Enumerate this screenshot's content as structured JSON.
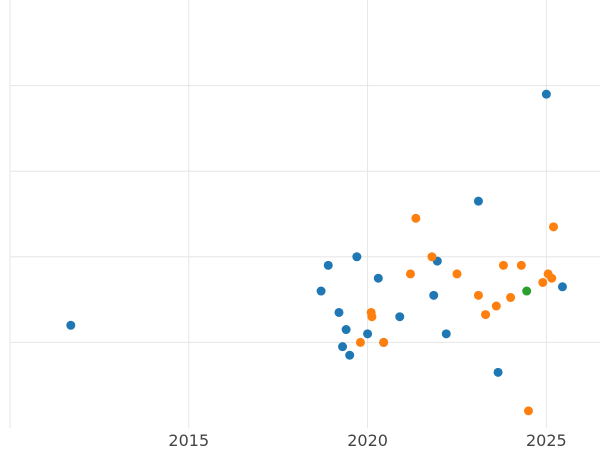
{
  "chart_data": {
    "type": "scatter",
    "title": "",
    "xlabel": "",
    "ylabel": "",
    "x_ticks": [
      "2015",
      "2020",
      "2025"
    ],
    "x_tick_values": [
      2015,
      2020,
      2025
    ],
    "xlim": [
      2010.0,
      2026.5
    ],
    "ylim": [
      0,
      10
    ],
    "y_gridlines": [
      2,
      4,
      6,
      8
    ],
    "grid": true,
    "legend": "none",
    "colors": {
      "blue": "#1f77b4",
      "orange": "#ff7f0e",
      "green": "#2ca02c"
    },
    "series": [
      {
        "color": "#1f77b4",
        "points": [
          {
            "x": 2011.7,
            "y": 2.4
          },
          {
            "x": 2018.7,
            "y": 3.2
          },
          {
            "x": 2018.9,
            "y": 3.8
          },
          {
            "x": 2019.2,
            "y": 2.7
          },
          {
            "x": 2019.3,
            "y": 1.9
          },
          {
            "x": 2019.4,
            "y": 2.3
          },
          {
            "x": 2019.5,
            "y": 1.7
          },
          {
            "x": 2019.7,
            "y": 4.0
          },
          {
            "x": 2020.0,
            "y": 2.2
          },
          {
            "x": 2020.3,
            "y": 3.5
          },
          {
            "x": 2020.45,
            "y": 2.0
          },
          {
            "x": 2020.9,
            "y": 2.6
          },
          {
            "x": 2021.85,
            "y": 3.1
          },
          {
            "x": 2021.95,
            "y": 3.9
          },
          {
            "x": 2022.2,
            "y": 2.2
          },
          {
            "x": 2023.1,
            "y": 5.3
          },
          {
            "x": 2023.65,
            "y": 1.3
          },
          {
            "x": 2025.0,
            "y": 7.8
          },
          {
            "x": 2025.45,
            "y": 3.3
          }
        ]
      },
      {
        "color": "#ff7f0e",
        "points": [
          {
            "x": 2019.8,
            "y": 2.0
          },
          {
            "x": 2020.1,
            "y": 2.7
          },
          {
            "x": 2020.12,
            "y": 2.6
          },
          {
            "x": 2020.45,
            "y": 2.0
          },
          {
            "x": 2021.2,
            "y": 3.6
          },
          {
            "x": 2021.35,
            "y": 4.9
          },
          {
            "x": 2021.8,
            "y": 4.0
          },
          {
            "x": 2022.5,
            "y": 3.6
          },
          {
            "x": 2023.1,
            "y": 3.1
          },
          {
            "x": 2023.3,
            "y": 2.65
          },
          {
            "x": 2023.6,
            "y": 2.85
          },
          {
            "x": 2023.8,
            "y": 3.8
          },
          {
            "x": 2024.0,
            "y": 3.05
          },
          {
            "x": 2024.3,
            "y": 3.8
          },
          {
            "x": 2024.5,
            "y": 0.4
          },
          {
            "x": 2024.9,
            "y": 3.4
          },
          {
            "x": 2025.05,
            "y": 3.6
          },
          {
            "x": 2025.15,
            "y": 3.5
          },
          {
            "x": 2025.2,
            "y": 4.7
          }
        ]
      },
      {
        "color": "#2ca02c",
        "points": [
          {
            "x": 2024.45,
            "y": 3.2
          }
        ]
      }
    ]
  }
}
